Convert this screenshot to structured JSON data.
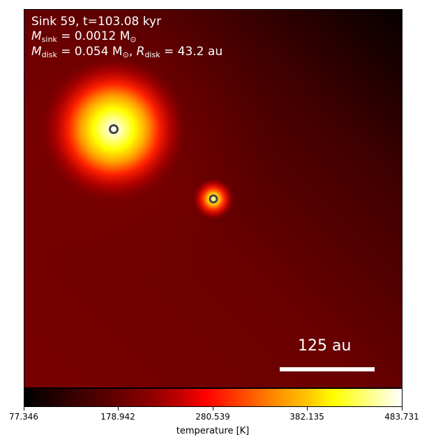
{
  "panel": {
    "title_line1": "Sink 59, t=103.08 kyr",
    "sink_mass_symbol": "M",
    "sink_mass_subscript": "sink",
    "sink_mass_value": " = 0.0012 M",
    "sink_mass_unit_subscript": "⊙",
    "disk_mass_symbol": "M",
    "disk_mass_subscript": "disk",
    "disk_mass_value": " = 0.054 M",
    "disk_mass_unit_subscript": "⊙",
    "disk_radius_sep": ", ",
    "disk_radius_symbol": "R",
    "disk_radius_subscript": "disk",
    "disk_radius_value": " = 43.2 au"
  },
  "scale_bar": {
    "label": "125 au"
  },
  "colorbar": {
    "label": "temperature [K]",
    "colormap": "hot",
    "ticks": [
      "77.346",
      "178.942",
      "280.539",
      "382.135",
      "483.731"
    ],
    "min": 77.346,
    "max": 483.731
  },
  "sinks": [
    {
      "name": "primary-sink",
      "color": "#444444"
    },
    {
      "name": "secondary-sink",
      "color": "#444444"
    }
  ]
}
